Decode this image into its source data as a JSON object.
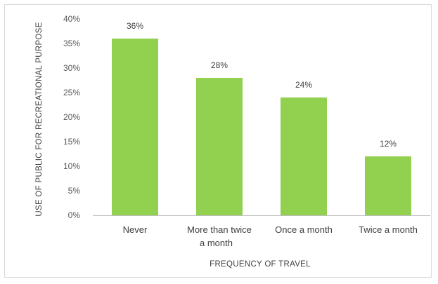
{
  "chart_data": {
    "type": "bar",
    "categories": [
      "Never",
      "More than twice a month",
      "Once a month",
      "Twice a month"
    ],
    "category_lines": [
      [
        "Never"
      ],
      [
        "More than twice",
        "a month"
      ],
      [
        "Once a month"
      ],
      [
        "Twice a month"
      ]
    ],
    "values": [
      36,
      28,
      24,
      12
    ],
    "data_labels": [
      "36%",
      "28%",
      "24%",
      "12%"
    ],
    "title": "",
    "xlabel": "FREQUENCY OF TRAVEL",
    "ylabel": "USE OF PUBLIC FOR RECREATIONAL PURPOSE",
    "ylim": [
      0,
      40
    ],
    "yticks": [
      0,
      5,
      10,
      15,
      20,
      25,
      30,
      35,
      40
    ],
    "ytick_labels": [
      "0%",
      "5%",
      "10%",
      "15%",
      "20%",
      "25%",
      "30%",
      "35%",
      "40%"
    ],
    "grid": false,
    "legend": "none",
    "bar_color": "#92d050"
  }
}
